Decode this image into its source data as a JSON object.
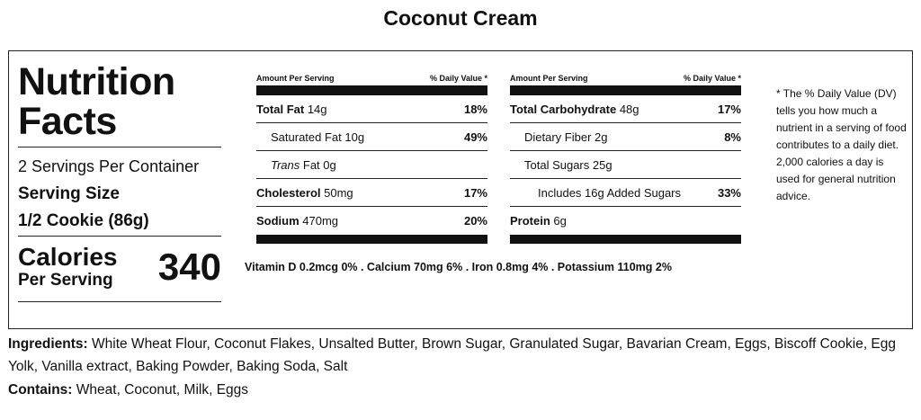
{
  "title": "Coconut Cream",
  "facts": {
    "heading_line1": "Nutrition",
    "heading_line2": "Facts",
    "servings_per_container": "2 Servings Per Container",
    "serving_size_label": "Serving Size",
    "serving_size_value": "1/2 Cookie (86g)",
    "calories_label": "Calories",
    "calories_sub": "Per Serving",
    "calories_value": "340"
  },
  "left_table": {
    "header_left": "Amount Per Serving",
    "header_right": "% Daily Value *",
    "rows": [
      {
        "name": "Total Fat",
        "amount": " 14g",
        "pct": "18%"
      },
      {
        "name": "Saturated Fat 10g",
        "amount": "",
        "pct": "49%"
      },
      {
        "name_italic": "Trans",
        "name": " Fat 0g",
        "amount": "",
        "pct": ""
      },
      {
        "name": "Cholesterol",
        "amount": " 50mg",
        "pct": "17%"
      },
      {
        "name": "Sodium",
        "amount": " 470mg",
        "pct": "20%"
      }
    ]
  },
  "right_table": {
    "header_left": "Amount Per Serving",
    "header_right": "% Daily Value *",
    "rows": [
      {
        "name": "Total Carbohydrate",
        "amount": " 48g",
        "pct": "17%"
      },
      {
        "name": "Dietary Fiber 2g",
        "amount": "",
        "pct": "8%"
      },
      {
        "name": "Total Sugars 25g",
        "amount": "",
        "pct": ""
      },
      {
        "name": "Includes 16g Added Sugars",
        "amount": "",
        "pct": "33%"
      },
      {
        "name": "Protein",
        "amount": " 6g",
        "pct": ""
      }
    ]
  },
  "vitamins": "Vitamin D 0.2mcg 0% . Calcium 70mg 6% . Iron 0.8mg 4% . Potassium 110mg 2%",
  "footnote": "* The % Daily Value (DV) tells you how much a nutrient in a serving of food contributes to a daily diet. 2,000 calories a day is used for general nutrition advice.",
  "ingredients": {
    "label": "Ingredients:",
    "text": " White Wheat Flour, Coconut Flakes, Unsalted Butter, Brown Sugar, Granulated Sugar, Bavarian Cream, Eggs, Biscoff Cookie, Egg Yolk, Vanilla extract, Baking Powder, Baking Soda, Salt"
  },
  "contains": {
    "label": "Contains:",
    "text": " Wheat, Coconut, Milk, Eggs"
  }
}
